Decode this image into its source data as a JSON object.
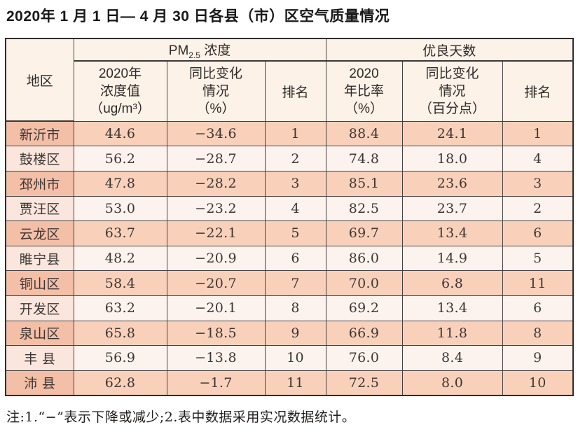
{
  "title": "2020年 1 月 1 日— 4 月 30 日各县（市）区空气质量情况",
  "table": {
    "header": {
      "region": "地区",
      "pm_group": {
        "prefix": "PM",
        "sub": "2.5",
        "suffix": " 浓度"
      },
      "good_days_group": "优良天数",
      "pm_value": "2020年\n浓度值\n（ug/m³）",
      "pm_change": "同比变化\n情况\n（%）",
      "pm_rank": "排名",
      "rate": "2020\n年比率\n（%）",
      "rate_change": "同比变化\n情况\n（百分点）",
      "rate_rank": "排名"
    },
    "rows": [
      {
        "region": "新沂市",
        "pm_value": "44.6",
        "pm_change": "−34.6",
        "pm_rank": "1",
        "rate": "88.4",
        "rate_change": "24.1",
        "rate_rank": "1"
      },
      {
        "region": "鼓楼区",
        "pm_value": "56.2",
        "pm_change": "−28.7",
        "pm_rank": "2",
        "rate": "74.8",
        "rate_change": "18.0",
        "rate_rank": "4"
      },
      {
        "region": "邳州市",
        "pm_value": "47.8",
        "pm_change": "−28.2",
        "pm_rank": "3",
        "rate": "85.1",
        "rate_change": "23.6",
        "rate_rank": "3"
      },
      {
        "region": "贾汪区",
        "pm_value": "53.0",
        "pm_change": "−23.2",
        "pm_rank": "4",
        "rate": "82.5",
        "rate_change": "23.7",
        "rate_rank": "2"
      },
      {
        "region": "云龙区",
        "pm_value": "63.7",
        "pm_change": "−22.1",
        "pm_rank": "5",
        "rate": "69.7",
        "rate_change": "13.4",
        "rate_rank": "6"
      },
      {
        "region": "睢宁县",
        "pm_value": "48.2",
        "pm_change": "−20.9",
        "pm_rank": "6",
        "rate": "86.0",
        "rate_change": "14.9",
        "rate_rank": "5"
      },
      {
        "region": "铜山区",
        "pm_value": "58.4",
        "pm_change": "−20.7",
        "pm_rank": "7",
        "rate": "70.0",
        "rate_change": "6.8",
        "rate_rank": "11"
      },
      {
        "region": "开发区",
        "pm_value": "63.2",
        "pm_change": "−20.1",
        "pm_rank": "8",
        "rate": "69.2",
        "rate_change": "13.4",
        "rate_rank": "6"
      },
      {
        "region": "泉山区",
        "pm_value": "65.8",
        "pm_change": "−18.5",
        "pm_rank": "9",
        "rate": "66.9",
        "rate_change": "11.8",
        "rate_rank": "8"
      },
      {
        "region": "丰 县",
        "pm_value": "56.9",
        "pm_change": "−13.8",
        "pm_rank": "10",
        "rate": "76.0",
        "rate_change": "8.4",
        "rate_rank": "9"
      },
      {
        "region": "沛 县",
        "pm_value": "62.8",
        "pm_change": "−1.7",
        "pm_rank": "11",
        "rate": "72.5",
        "rate_change": "8.0",
        "rate_rank": "10"
      }
    ]
  },
  "note": "注:1.“−”表示下降或减少;2.表中数据采用实况数据统计。",
  "colors": {
    "header_bg": "#fdf2e8",
    "row_shaded": "#f9d1bb",
    "row_shaded_region": "#f4bfa7",
    "row_light": "#fdf3ee",
    "row_light_region": "#fae6dd",
    "border": "#474141",
    "outer_border": "#2d2d2d",
    "text": "#3c3634"
  }
}
